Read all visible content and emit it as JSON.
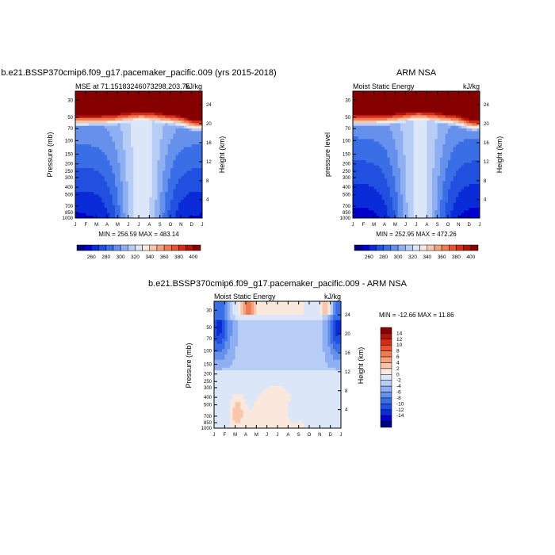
{
  "months": [
    "J",
    "F",
    "M",
    "A",
    "M",
    "J",
    "J",
    "A",
    "S",
    "O",
    "N",
    "D",
    "J"
  ],
  "pressure_ticks": [
    "30",
    "50",
    "70",
    "100",
    "150",
    "200",
    "250",
    "300",
    "400",
    "500",
    "700",
    "850",
    "1000"
  ],
  "colors": {
    "mse": [
      "#00007f",
      "#0000cd",
      "#0a2bd8",
      "#2150e0",
      "#3a6ee6",
      "#6590ec",
      "#8eaff1",
      "#b7cdf6",
      "#dce6f9",
      "#fbe8dc",
      "#f8c6ad",
      "#f4a27e",
      "#ef7b54",
      "#e85432",
      "#d62d18",
      "#b01409",
      "#860000"
    ],
    "diff": [
      "#00007f",
      "#0000cd",
      "#0a2bd8",
      "#2150e0",
      "#3a6ee6",
      "#6590ec",
      "#8eaff1",
      "#b7cdf6",
      "#dce6f9",
      "#fbe8dc",
      "#f8c6ad",
      "#f4a27e",
      "#ef7b54",
      "#e85432",
      "#d62d18",
      "#b01409",
      "#860000"
    ]
  },
  "chart_data": [
    {
      "type": "heatmap",
      "id": "model",
      "title": "b.e21.BSSP370cmip6.f09_g17.pacemaker_pacific.009 (yrs 2015-2018)",
      "left_string": "MSE at 71.15183246073298,203.75",
      "right_string": "kJ/kg",
      "xlabel": "",
      "ylabel": "Pressure (mb)",
      "ylabel_right": "Height (km)",
      "height_ticks": [
        "24",
        "20",
        "16",
        "12",
        "8",
        "4"
      ],
      "min_max": "MIN = 256.59 MAX = 483.14",
      "colorbar_labels": [
        "260",
        "280",
        "300",
        "320",
        "340",
        "360",
        "380",
        "400"
      ],
      "levels": [
        250,
        260,
        270,
        280,
        290,
        300,
        310,
        320,
        330,
        340,
        350,
        360,
        370,
        380,
        390,
        400
      ],
      "surface_range": [
        258,
        270
      ],
      "upper_value": 483
    },
    {
      "type": "heatmap",
      "id": "obs",
      "title": "ARM NSA",
      "left_string": "Moist Static Energy",
      "right_string": "kJ/kg",
      "xlabel": "",
      "ylabel": "pressure level",
      "ylabel_right": "Height (km)",
      "height_ticks": [
        "24",
        "20",
        "16",
        "12",
        "8",
        "4"
      ],
      "min_max": "MIN = 252.95 MAX = 472.26",
      "colorbar_labels": [
        "260",
        "280",
        "300",
        "320",
        "340",
        "360",
        "380",
        "400"
      ],
      "levels": [
        250,
        260,
        270,
        280,
        290,
        300,
        310,
        320,
        330,
        340,
        350,
        360,
        370,
        380,
        390,
        400
      ],
      "surface_range": [
        255,
        268
      ],
      "upper_value": 472
    },
    {
      "type": "heatmap",
      "id": "diff",
      "title": "b.e21.BSSP370cmip6.f09_g17.pacemaker_pacific.009 - ARM NSA",
      "left_string": "Moist Static Energy",
      "right_string": "kJ/kg",
      "xlabel": "",
      "ylabel": "Pressure (mb)",
      "ylabel_right": "Height (km)",
      "height_ticks": [
        "24",
        "20",
        "16",
        "12",
        "8",
        "4"
      ],
      "min_max": "MIN = -12.66 MAX =  11.86",
      "colorbar_labels": [
        "14",
        "12",
        "10",
        "8",
        "6",
        "4",
        "2",
        "0",
        "-2",
        "-4",
        "-6",
        "-8",
        "-10",
        "-12",
        "-14"
      ],
      "levels": [
        -15,
        -13,
        -11,
        -9,
        -7,
        -5,
        -3,
        -1,
        1,
        3,
        5,
        7,
        9,
        11,
        13,
        15
      ]
    }
  ]
}
